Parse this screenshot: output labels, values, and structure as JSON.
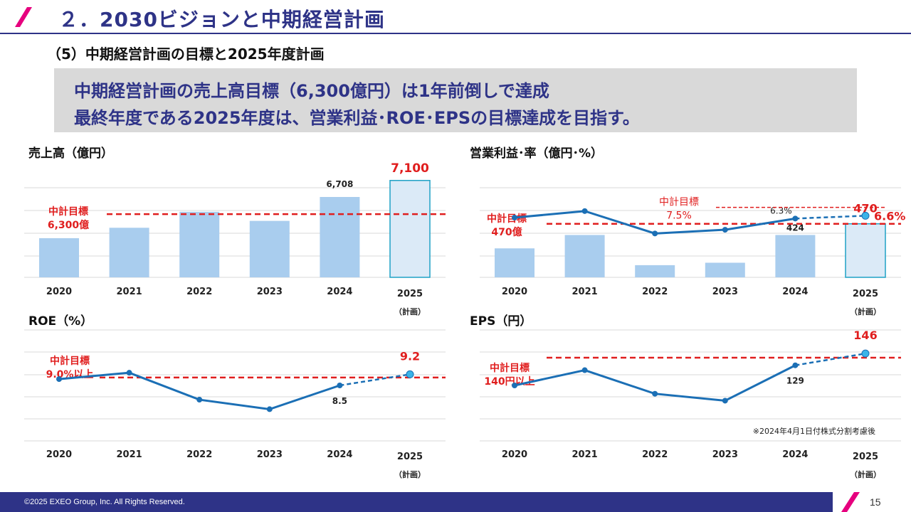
{
  "header": {
    "title": "２．2030ビジョンと中期経営計画",
    "subtitle": "（5）中期経営計画の目標と2025年度計画"
  },
  "banner": {
    "line1": "中期経営計画の売上高目標（6,300億円）は1年前倒しで達成",
    "line2": "最終年度である2025年度は、営業利益･ROE･EPSの目標達成を目指す。"
  },
  "colors": {
    "brand": "#2e3387",
    "accent": "#e6007e",
    "bar": "#a9cdee",
    "plan_bar": "#dbeaf7",
    "plan_border": "#1fa2c5",
    "line": "#1b6fb5",
    "target": "#e01e1e"
  },
  "chart_data": [
    {
      "id": "sales",
      "type": "bar",
      "title": "売上高（億円）",
      "categories": [
        "2020",
        "2021",
        "2022",
        "2023",
        "2024",
        "2025"
      ],
      "plan_sublabel": "（計画）",
      "values": [
        5730,
        5977,
        6356,
        6140,
        6708,
        7100
      ],
      "value_labels": [
        "",
        "",
        "",
        "",
        "6,708",
        "7,100"
      ],
      "target": {
        "value": 6300,
        "label_line1": "中計目標",
        "label_line2": "6,300億"
      },
      "ylim": [
        4800,
        7400
      ]
    },
    {
      "id": "op",
      "type": "bar+line",
      "title": "営業利益･率（億円･%）",
      "categories": [
        "2020",
        "2021",
        "2022",
        "2023",
        "2024",
        "2025"
      ],
      "plan_sublabel": "（計画）",
      "values": [
        369,
        424,
        300,
        310,
        424,
        470
      ],
      "bar_value_labels": [
        "",
        "",
        "",
        "",
        "424",
        "470"
      ],
      "target": {
        "value": 470,
        "label_line1": "中計目標",
        "label_line2": "470億"
      },
      "ylim": [
        250,
        700
      ],
      "rate": {
        "values": [
          6.4,
          7.1,
          4.7,
          5.1,
          6.3,
          6.6
        ],
        "value_labels": [
          "",
          "",
          "",
          "",
          "6.3%",
          "6.6%"
        ],
        "ylim": [
          0,
          12.5
        ],
        "target": {
          "value": 7.5,
          "label_line1": "中計目標",
          "label_line2": "7.5%"
        }
      }
    },
    {
      "id": "roe",
      "type": "line",
      "title": "ROE（%）",
      "categories": [
        "2020",
        "2021",
        "2022",
        "2023",
        "2024",
        "2025"
      ],
      "plan_sublabel": "（計画）",
      "values": [
        8.9,
        9.3,
        7.6,
        7.0,
        8.5,
        9.2
      ],
      "value_labels": [
        "",
        "",
        "",
        "",
        "8.5",
        "9.2"
      ],
      "target": {
        "value": 9.0,
        "label_line1": "中計目標",
        "label_line2": "9.0%以上"
      },
      "ylim": [
        5.0,
        12.0
      ]
    },
    {
      "id": "eps",
      "type": "line",
      "title": "EPS（円）",
      "categories": [
        "2020",
        "2021",
        "2022",
        "2023",
        "2024",
        "2025"
      ],
      "plan_sublabel": "（計画）",
      "values": [
        100,
        122,
        88,
        78,
        129,
        146
      ],
      "value_labels": [
        "",
        "",
        "",
        "",
        "129",
        "146"
      ],
      "target": {
        "value": 140,
        "label_line1": "中計目標",
        "label_line2": "140円以上"
      },
      "ylim": [
        20,
        180
      ],
      "note": "※2024年4月1日付株式分割考慮後"
    }
  ],
  "footer": {
    "copyright": "©2025 EXEO Group, Inc. All Rights Reserved.",
    "page": "15"
  }
}
